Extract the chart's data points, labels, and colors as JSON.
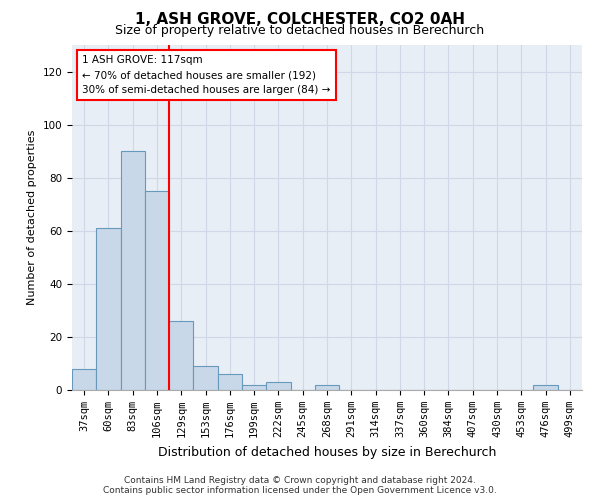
{
  "title": "1, ASH GROVE, COLCHESTER, CO2 0AH",
  "subtitle": "Size of property relative to detached houses in Berechurch",
  "xlabel": "Distribution of detached houses by size in Berechurch",
  "ylabel": "Number of detached properties",
  "categories": [
    "37sqm",
    "60sqm",
    "83sqm",
    "106sqm",
    "129sqm",
    "153sqm",
    "176sqm",
    "199sqm",
    "222sqm",
    "245sqm",
    "268sqm",
    "291sqm",
    "314sqm",
    "337sqm",
    "360sqm",
    "384sqm",
    "407sqm",
    "430sqm",
    "453sqm",
    "476sqm",
    "499sqm"
  ],
  "values": [
    8,
    61,
    90,
    75,
    26,
    9,
    6,
    2,
    3,
    0,
    2,
    0,
    0,
    0,
    0,
    0,
    0,
    0,
    0,
    2,
    0
  ],
  "bar_color": "#c8d8e8",
  "bar_edge_color": "#6699bb",
  "grid_color": "#d0d8e8",
  "background_color": "#e8eef5",
  "vline_x": 3.5,
  "vline_color": "red",
  "annotation_text": "1 ASH GROVE: 117sqm\n← 70% of detached houses are smaller (192)\n30% of semi-detached houses are larger (84) →",
  "annotation_box_color": "white",
  "annotation_box_edge_color": "red",
  "ylim": [
    0,
    130
  ],
  "yticks": [
    0,
    20,
    40,
    60,
    80,
    100,
    120
  ],
  "footer_line1": "Contains HM Land Registry data © Crown copyright and database right 2024.",
  "footer_line2": "Contains public sector information licensed under the Open Government Licence v3.0.",
  "title_fontsize": 11,
  "subtitle_fontsize": 9,
  "xlabel_fontsize": 9,
  "ylabel_fontsize": 8,
  "tick_fontsize": 7.5,
  "footer_fontsize": 6.5
}
